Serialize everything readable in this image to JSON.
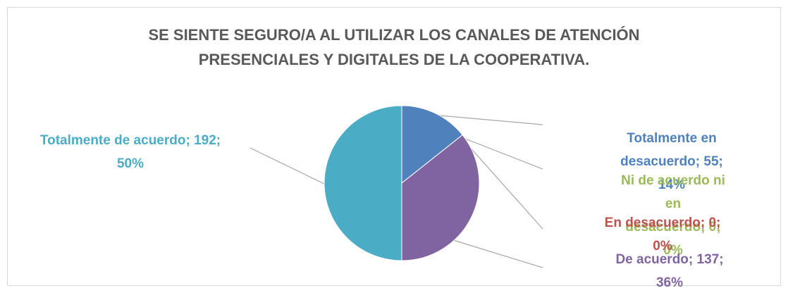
{
  "chart_data": {
    "type": "pie",
    "title": "SE SIENTE SEGURO/A AL UTILIZAR LOS CANALES DE ATENCIÓN\nPRESENCIALES Y DIGITALES DE LA COOPERATIVA.",
    "values": [
      55,
      0,
      0,
      137,
      192
    ],
    "value_labels": [
      "Totalmente en desacuerdo; 55;\n14%",
      "Ni de acuerdo ni en\ndesacuerdo; 0; 0%",
      "En desacuerdo; 0; 0%",
      "De acuerdo; 137; 36%",
      "Totalmente de acuerdo; 192;\n50%"
    ],
    "colors": [
      "#4f81bd",
      "#9bbb59",
      "#c0504d",
      "#8064a2",
      "#4bacc6"
    ]
  }
}
